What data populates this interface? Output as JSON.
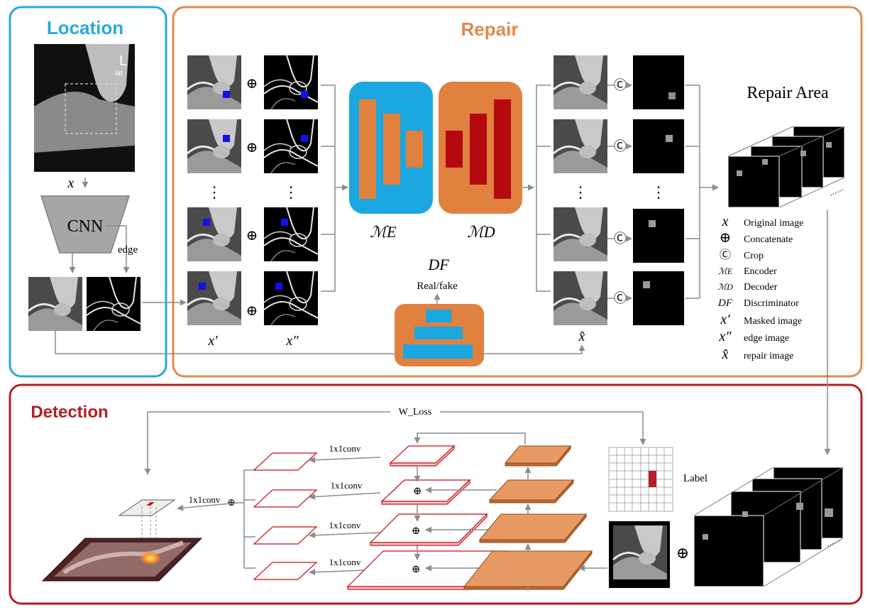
{
  "titles": {
    "location": "Location",
    "repair": "Repair",
    "detection": "Detection"
  },
  "location": {
    "x_label": "x",
    "cnn": "CNN",
    "edge": "edge"
  },
  "repair": {
    "x_prime": "x′",
    "x_dprime": "x″",
    "encoder_label": "ℳE",
    "decoder_label": "ℳD",
    "discriminator_label": "DF",
    "real_fake": "Real/fake",
    "x_hat": "x̂",
    "repair_area": "Repair Area",
    "dots": "⋮"
  },
  "legend": [
    {
      "symbol": "x",
      "text": "Original image"
    },
    {
      "symbol": "⊕",
      "text": "Concatenate"
    },
    {
      "symbol": "Ⓒ",
      "text": "Crop"
    },
    {
      "symbol": "ℳE",
      "text": "Encoder"
    },
    {
      "symbol": "ℳD",
      "text": "Decoder"
    },
    {
      "symbol": "DF",
      "text": "Discriminator"
    },
    {
      "symbol": "x′",
      "text": "Masked image"
    },
    {
      "symbol": "x″",
      "text": "edge image"
    },
    {
      "symbol": "x̂",
      "text": "repair image"
    }
  ],
  "detection": {
    "w_loss": "W_Loss",
    "conv": [
      "1x1conv",
      "1x1conv",
      "1x1conv",
      "1x1conv"
    ],
    "conv_final": "1x1conv",
    "label": "Label"
  },
  "colors": {
    "location_border": "#29a8df",
    "repair_border": "#e08a4f",
    "detection_border": "#b21f24",
    "location_title": "#29a8df",
    "repair_title": "#e08a4f",
    "detection_title": "#b21f24",
    "encoder_bg": "#1ba7e0",
    "encoder_bar": "#e0813f",
    "decoder_bg": "#e0813f",
    "decoder_bar": "#b5090f",
    "plane_orange": "#e79a63",
    "plane_red": "#c8101a"
  }
}
